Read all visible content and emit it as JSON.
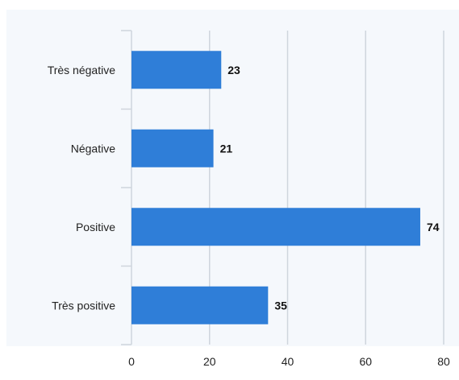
{
  "chart_data": {
    "type": "bar",
    "orientation": "horizontal",
    "categories": [
      "Très négative",
      "Négative",
      "Positive",
      "Très positive"
    ],
    "values": [
      23,
      21,
      74,
      35
    ],
    "value_labels": [
      "23",
      "21",
      "74",
      "35"
    ],
    "xlim": [
      0,
      80
    ],
    "xticks": [
      0,
      20,
      40,
      60,
      80
    ],
    "xtick_labels": [
      "0",
      "20",
      "40",
      "60",
      "80"
    ],
    "grid": "vertical",
    "legend": "none",
    "bar_color": "#2f7ed8",
    "background": "#f5f8fc",
    "grid_color": "#cfd5dd"
  }
}
